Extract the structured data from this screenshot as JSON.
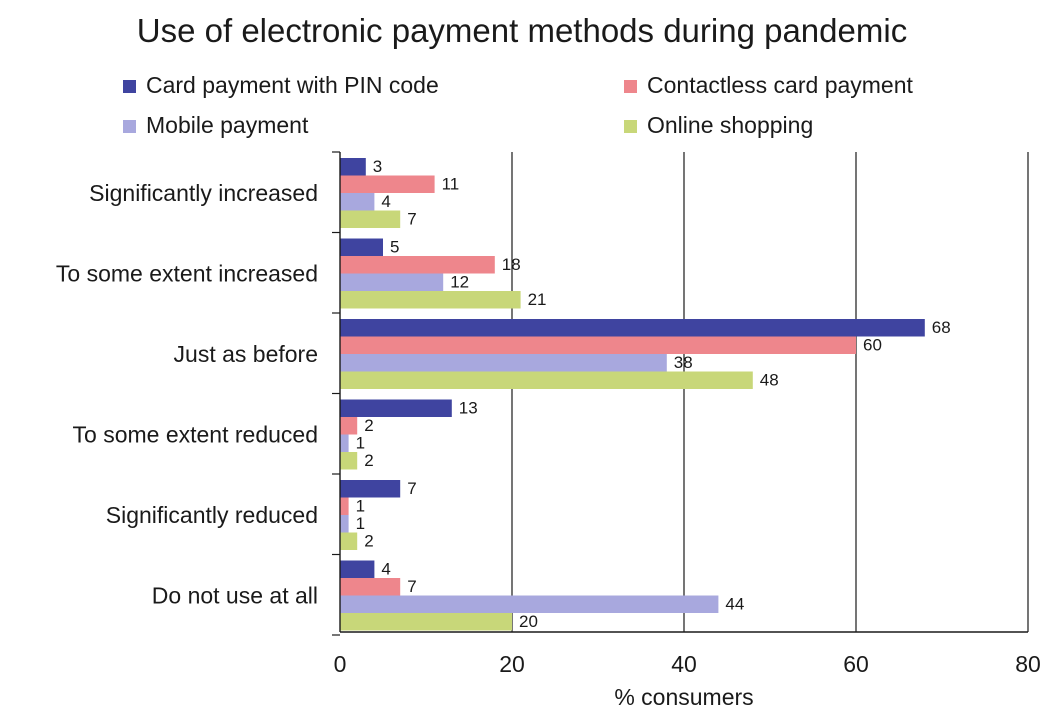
{
  "chart_data": {
    "type": "bar",
    "orientation": "horizontal",
    "title": "Use of electronic payment methods during pandemic",
    "xlabel": "% consumers",
    "ylabel": "",
    "xlim": [
      0,
      80
    ],
    "xticks": [
      0,
      20,
      40,
      60,
      80
    ],
    "grid": true,
    "legend_position": "top",
    "categories": [
      "Significantly increased",
      "To some extent increased",
      "Just as before",
      "To some extent reduced",
      "Significantly reduced",
      "Do not use at all"
    ],
    "series": [
      {
        "name": "Card payment with PIN code",
        "color": "#3f44a0",
        "values": [
          3,
          5,
          68,
          13,
          7,
          4
        ]
      },
      {
        "name": "Contactless card payment",
        "color": "#ee868c",
        "values": [
          11,
          18,
          60,
          2,
          1,
          7
        ]
      },
      {
        "name": "Mobile payment",
        "color": "#a8a8de",
        "values": [
          4,
          12,
          38,
          1,
          1,
          44
        ]
      },
      {
        "name": "Online shopping",
        "color": "#c8d779",
        "values": [
          7,
          21,
          48,
          2,
          2,
          20
        ]
      }
    ]
  }
}
